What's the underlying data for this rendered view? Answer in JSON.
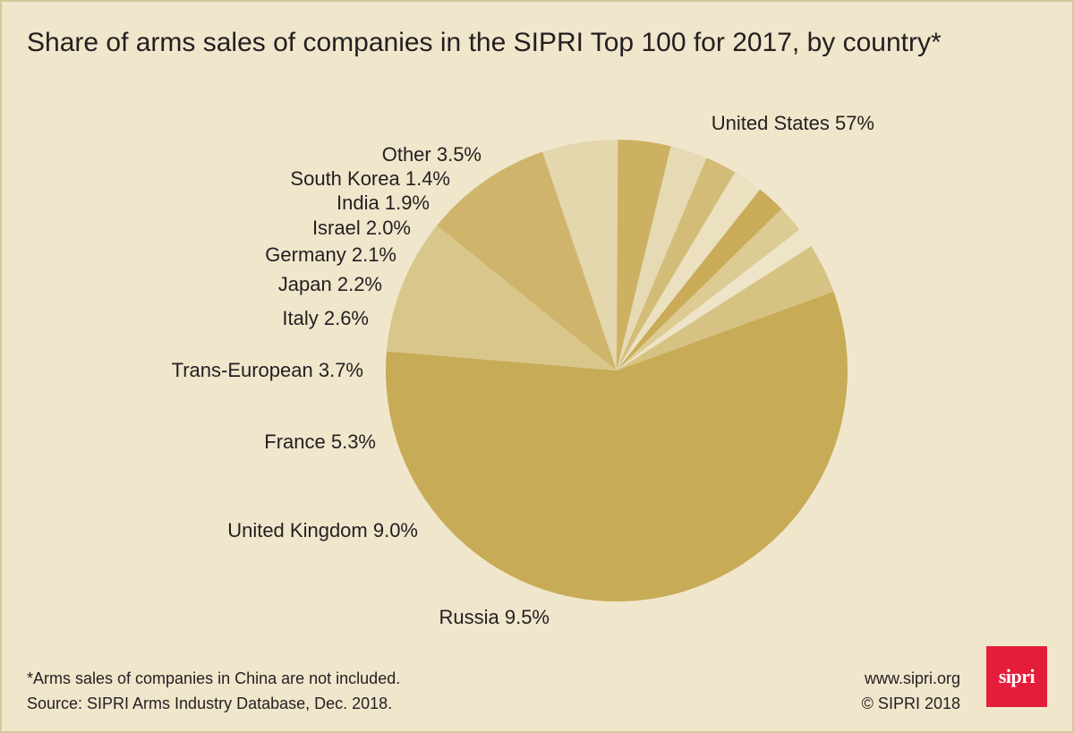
{
  "title": "Share of arms sales of companies in the SIPRI Top 100 for 2017, by country*",
  "chart_data": {
    "type": "pie",
    "title": "Share of arms sales of companies in the SIPRI Top 100 for 2017, by country*",
    "units": "%",
    "start_angle_deg": -20,
    "direction": "clockwise",
    "slices": [
      {
        "name": "United States",
        "value": 57,
        "label": "United States 57%",
        "color": "#c8ab56"
      },
      {
        "name": "Russia",
        "value": 9.5,
        "label": "Russia 9.5%",
        "color": "#d9c68a"
      },
      {
        "name": "United Kingdom",
        "value": 9.0,
        "label": "United Kingdom 9.0%",
        "color": "#cfb46b"
      },
      {
        "name": "France",
        "value": 5.3,
        "label": "France 5.3%",
        "color": "#e4d6ad"
      },
      {
        "name": "Trans-European",
        "value": 3.7,
        "label": "Trans-European 3.7%",
        "color": "#cdb163"
      },
      {
        "name": "Italy",
        "value": 2.6,
        "label": "Italy 2.6%",
        "color": "#e6dab5"
      },
      {
        "name": "Japan",
        "value": 2.2,
        "label": "Japan 2.2%",
        "color": "#d3bc77"
      },
      {
        "name": "Germany",
        "value": 2.1,
        "label": "Germany 2.1%",
        "color": "#ebe0c0"
      },
      {
        "name": "Israel",
        "value": 2.0,
        "label": "Israel 2.0%",
        "color": "#c9ab58"
      },
      {
        "name": "India",
        "value": 1.9,
        "label": "India 1.9%",
        "color": "#dccb93"
      },
      {
        "name": "South Korea",
        "value": 1.4,
        "label": "South Korea 1.4%",
        "color": "#eee4c8"
      },
      {
        "name": "Other",
        "value": 3.5,
        "label": "Other 3.5%",
        "color": "#d6c282"
      }
    ]
  },
  "footer": {
    "note": "*Arms sales of companies in China are not included.",
    "source": "Source: SIPRI Arms Industry Database, Dec. 2018.",
    "website": "www.sipri.org",
    "copyright": "© SIPRI 2018"
  },
  "logo": {
    "text": "sipri",
    "color": "#e41e3a"
  },
  "colors": {
    "background": "#f0e6cc",
    "border": "#d6c89a",
    "text": "#231f20"
  }
}
